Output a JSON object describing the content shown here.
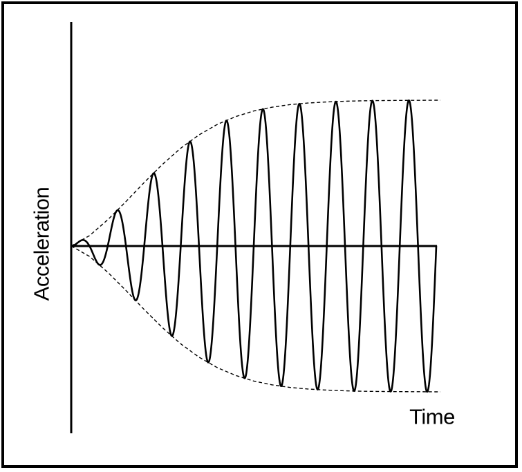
{
  "figure": {
    "background_color": "#ffffff",
    "frame_color": "#000000",
    "line_color": "#000000",
    "x_axis_label": "Time",
    "y_axis_label": "Acceleration"
  },
  "chart_data": {
    "type": "line",
    "title": "",
    "xlabel": "Time",
    "ylabel": "Acceleration",
    "grid": false,
    "legend_position": "none",
    "x_ticks": [],
    "y_ticks": [],
    "description": "Qualitative plot of an oscillating acceleration signal starting at zero amplitude and growing under a sigmoidal (S-shaped) amplitude envelope that saturates at a constant maximum. The envelope is drawn as symmetric dashed curves above and below a solid horizontal zero baseline. About ten carrier cycles are shown; the first half-cycle moves upward.",
    "wave": {
      "cycles": 10,
      "starts_at_zero": true,
      "first_half_cycle_direction": "up",
      "relative_amplitude_at_successive_peaks": [
        0.03,
        0.23,
        0.5,
        0.7,
        0.86,
        0.94,
        0.985,
        0.995,
        1.0,
        1.0
      ]
    },
    "envelope_profile": {
      "style": "dashed",
      "symmetric_about_zero": true,
      "u": [
        0,
        0.05,
        0.1,
        0.15,
        0.2,
        0.25,
        0.3,
        0.35,
        0.4,
        0.45,
        0.5,
        0.55,
        0.6,
        0.65,
        0.7,
        0.75,
        0.8,
        0.85,
        0.9,
        0.95,
        1.0
      ],
      "a": [
        0,
        0.071,
        0.18,
        0.305,
        0.436,
        0.56,
        0.671,
        0.762,
        0.834,
        0.887,
        0.926,
        0.952,
        0.97,
        0.981,
        0.988,
        0.993,
        0.996,
        0.9975,
        0.9986,
        0.9992,
        1.0
      ]
    },
    "pixel_geometry": {
      "zero_y": 356,
      "x_start": 103,
      "x_wave_end": 631,
      "x_envelope_end": 637,
      "amplitude_max": 211,
      "y_axis_x": 103,
      "y_axis_top": 32,
      "y_axis_bottom": 627,
      "zero_line_x_end": 632,
      "axis_stroke_width": 3,
      "wave_stroke_width": 2.6,
      "envelope_stroke_width": 1.4,
      "envelope_dash": "5 3.5"
    }
  }
}
